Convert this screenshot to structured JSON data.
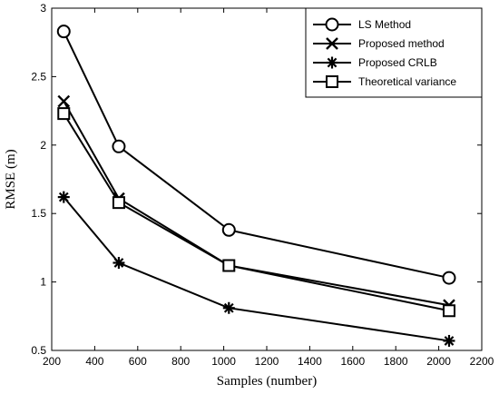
{
  "chart_data": {
    "type": "line",
    "xlabel": "Samples (number)",
    "ylabel": "RMSE (m)",
    "xlim": [
      200,
      2200
    ],
    "ylim": [
      0.5,
      3
    ],
    "xticks": [
      200,
      400,
      600,
      800,
      1000,
      1200,
      1400,
      1600,
      1800,
      2000,
      2200
    ],
    "yticks": [
      0.5,
      1,
      1.5,
      2,
      2.5,
      3
    ],
    "ytick_labels": [
      "0.5",
      "1",
      "1.5",
      "2",
      "2.5",
      "3"
    ],
    "grid": false,
    "legend_position": "top-right",
    "x": [
      256,
      512,
      1024,
      2048
    ],
    "series": [
      {
        "name": "LS Method",
        "marker": "circle",
        "values": [
          2.83,
          1.99,
          1.38,
          1.03
        ]
      },
      {
        "name": "Proposed method",
        "marker": "x",
        "values": [
          2.32,
          1.61,
          1.12,
          0.83
        ]
      },
      {
        "name": "Proposed CRLB",
        "marker": "asterisk",
        "values": [
          1.62,
          1.14,
          0.81,
          0.57
        ]
      },
      {
        "name": "Theoretical variance",
        "marker": "square",
        "values": [
          2.23,
          1.58,
          1.12,
          0.79
        ]
      }
    ]
  }
}
